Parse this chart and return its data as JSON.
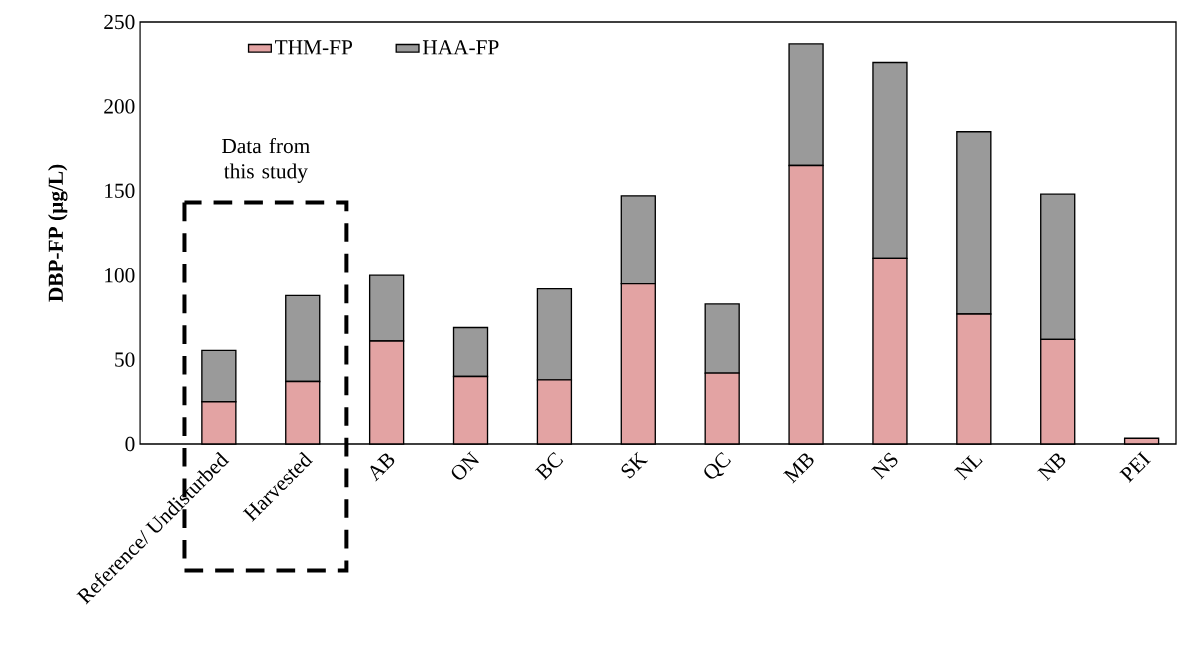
{
  "chart_data": {
    "type": "bar",
    "stacked": true,
    "ylabel": "DBP-FP (µg/L)",
    "categories": [
      "Reference/ Undisturbed",
      "Harvested",
      "AB",
      "ON",
      "BC",
      "SK",
      "QC",
      "MB",
      "NS",
      "NL",
      "NB",
      "PEI"
    ],
    "series": [
      {
        "name": "THM-FP",
        "color": "#e3a3a3",
        "values": [
          25,
          37,
          61,
          40,
          38,
          95,
          42,
          165,
          110,
          77,
          62,
          3.4
        ]
      },
      {
        "name": "HAA-FP",
        "color": "#9a9a9a",
        "values": [
          30.5,
          51,
          39,
          29,
          54,
          52,
          41,
          72,
          116,
          108,
          86,
          null
        ]
      }
    ],
    "ylim": [
      0,
      250
    ],
    "yticks": [
      0,
      50,
      100,
      150,
      200,
      250
    ],
    "grid": false,
    "legend": "top left",
    "annotations": [
      "Data from this study"
    ]
  }
}
